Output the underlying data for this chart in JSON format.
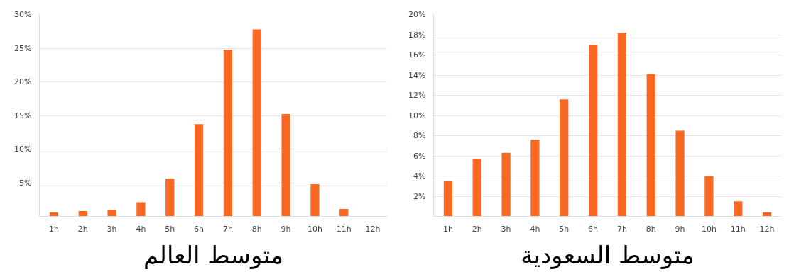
{
  "chart_data": [
    {
      "type": "bar",
      "title": "متوسط العالم",
      "categories": [
        "1h",
        "2h",
        "3h",
        "4h",
        "5h",
        "6h",
        "7h",
        "8h",
        "9h",
        "10h",
        "11h",
        "12h"
      ],
      "values": [
        0.6,
        0.8,
        1.0,
        2.1,
        5.6,
        13.7,
        24.8,
        27.8,
        15.2,
        4.8,
        1.1,
        0
      ],
      "color": "#f96823",
      "ylim": [
        0,
        30
      ],
      "yticks": [
        {
          "value": 5,
          "label": "5%"
        },
        {
          "value": 10,
          "label": "10%"
        },
        {
          "value": 15,
          "label": "15%"
        },
        {
          "value": 20,
          "label": "20%"
        },
        {
          "value": 25,
          "label": "25%"
        },
        {
          "value": 30,
          "label": "30%"
        }
      ],
      "grid": "y"
    },
    {
      "type": "bar",
      "title": "متوسط السعودية",
      "categories": [
        "1h",
        "2h",
        "3h",
        "4h",
        "5h",
        "6h",
        "7h",
        "8h",
        "9h",
        "10h",
        "11h",
        "12h"
      ],
      "values": [
        3.5,
        5.7,
        6.3,
        7.6,
        11.6,
        17.0,
        18.2,
        14.1,
        8.5,
        4.0,
        1.5,
        0.4
      ],
      "color": "#f96823",
      "ylim": [
        0,
        20
      ],
      "yticks": [
        {
          "value": 2,
          "label": "2%"
        },
        {
          "value": 4,
          "label": "4%"
        },
        {
          "value": 6,
          "label": "6%"
        },
        {
          "value": 8,
          "label": "8%"
        },
        {
          "value": 10,
          "label": "10%"
        },
        {
          "value": 12,
          "label": "12%"
        },
        {
          "value": 14,
          "label": "14%"
        },
        {
          "value": 16,
          "label": "16%"
        },
        {
          "value": 18,
          "label": "18%"
        },
        {
          "value": 20,
          "label": "20%"
        }
      ],
      "grid": "y"
    }
  ]
}
